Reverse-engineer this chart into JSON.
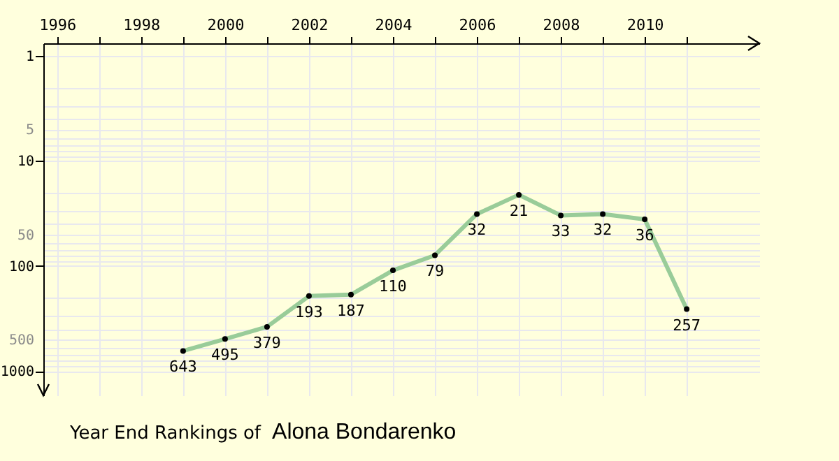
{
  "chart_data": {
    "type": "line",
    "title": "Year End Rankings of",
    "subtitle": "Alona Bondarenko",
    "x": [
      1999,
      2000,
      2001,
      2002,
      2003,
      2004,
      2005,
      2006,
      2007,
      2008,
      2009,
      2010,
      2011
    ],
    "series": [
      {
        "color": "#99cc99",
        "values": [
          643,
          495,
          379,
          193,
          187,
          110,
          79,
          32,
          21,
          33,
          32,
          36,
          257
        ]
      }
    ],
    "xlim": [
      1995.67,
      2012.73
    ],
    "xticks": [
      1996,
      {
        "value": 1997,
        "label": null
      },
      1998,
      {
        "value": 1999,
        "label": null
      },
      2000,
      {
        "value": 2001,
        "label": null
      },
      2002,
      {
        "value": 2003,
        "label": null
      },
      2004,
      {
        "value": 2005,
        "label": null
      },
      2006,
      {
        "value": 2007,
        "label": null
      },
      2008,
      {
        "value": 2009,
        "label": null
      },
      2010,
      {
        "value": 2011,
        "label": null
      }
    ],
    "ylim": [
      1700,
      0.76
    ],
    "yticks": [
      1,
      {
        "value": 2,
        "label": null
      },
      {
        "value": 3,
        "label": null
      },
      {
        "value": 4,
        "label": null
      },
      5,
      {
        "value": 6,
        "label": null
      },
      {
        "value": 7,
        "label": null
      },
      {
        "value": 8,
        "label": null
      },
      {
        "value": 9,
        "label": null
      },
      10,
      {
        "value": 20,
        "label": null
      },
      {
        "value": 30,
        "label": null
      },
      {
        "value": 40,
        "label": null
      },
      50,
      {
        "value": 60,
        "label": null
      },
      {
        "value": 70,
        "label": null
      },
      {
        "value": 80,
        "label": null
      },
      {
        "value": 90,
        "label": null
      },
      100,
      {
        "value": 200,
        "label": null
      },
      {
        "value": 300,
        "label": null
      },
      {
        "value": 400,
        "label": null
      },
      500,
      {
        "value": 600,
        "label": null
      },
      {
        "value": 700,
        "label": null
      },
      {
        "value": 800,
        "label": null
      },
      {
        "value": 900,
        "label": null
      },
      1000
    ],
    "log": true,
    "grid": true,
    "marker": "circle",
    "line_style": "solid",
    "data_labels": true
  }
}
